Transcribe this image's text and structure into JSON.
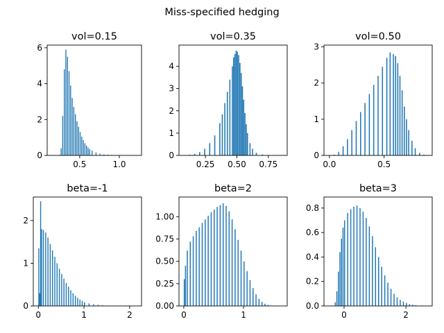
{
  "figure": {
    "suptitle": "Miss-specified hedging",
    "bar_color": "#1f77b4",
    "background": "#ffffff"
  },
  "chart_data": [
    {
      "type": "bar",
      "title": "vol=0.15",
      "xlim": [
        0.09,
        1.28
      ],
      "ylim": [
        0,
        6.15
      ],
      "xticks": [
        {
          "v": 0.5,
          "label": "0.5"
        },
        {
          "v": 1.0,
          "label": "1.0"
        }
      ],
      "yticks": [
        {
          "v": 0,
          "label": "0"
        },
        {
          "v": 2,
          "label": "2"
        },
        {
          "v": 4,
          "label": "4"
        },
        {
          "v": 6,
          "label": "6"
        }
      ],
      "bin_width": 0.0118,
      "bins": [
        [
          0.24,
          0.03
        ],
        [
          0.26,
          0.4
        ],
        [
          0.28,
          2.2
        ],
        [
          0.3,
          4.8
        ],
        [
          0.32,
          5.9
        ],
        [
          0.34,
          5.5
        ],
        [
          0.36,
          4.7
        ],
        [
          0.38,
          3.9
        ],
        [
          0.4,
          3.2
        ],
        [
          0.42,
          2.7
        ],
        [
          0.44,
          2.3
        ],
        [
          0.46,
          1.9
        ],
        [
          0.48,
          1.6
        ],
        [
          0.5,
          1.3
        ],
        [
          0.52,
          1.05
        ],
        [
          0.54,
          0.85
        ],
        [
          0.56,
          0.68
        ],
        [
          0.58,
          0.55
        ],
        [
          0.6,
          0.44
        ],
        [
          0.62,
          0.35
        ],
        [
          0.65,
          0.27
        ],
        [
          0.7,
          0.17
        ],
        [
          0.75,
          0.1
        ],
        [
          0.8,
          0.06
        ],
        [
          0.85,
          0.04
        ],
        [
          0.9,
          0.025
        ],
        [
          0.95,
          0.015
        ],
        [
          1.0,
          0.01
        ],
        [
          1.1,
          0.005
        ],
        [
          1.2,
          0.003
        ]
      ]
    },
    {
      "type": "bar",
      "title": "vol=0.35",
      "xlim": [
        0.04,
        0.9
      ],
      "ylim": [
        0,
        4.95
      ],
      "xticks": [
        {
          "v": 0.25,
          "label": "0.25"
        },
        {
          "v": 0.5,
          "label": "0.50"
        },
        {
          "v": 0.75,
          "label": "0.75"
        }
      ],
      "yticks": [
        {
          "v": 0,
          "label": "0"
        },
        {
          "v": 1,
          "label": "1"
        },
        {
          "v": 2,
          "label": "2"
        },
        {
          "v": 3,
          "label": "3"
        },
        {
          "v": 4,
          "label": "4"
        }
      ],
      "bin_width": 0.0086,
      "bins": [
        [
          0.08,
          0.01
        ],
        [
          0.12,
          0.03
        ],
        [
          0.16,
          0.07
        ],
        [
          0.2,
          0.15
        ],
        [
          0.24,
          0.3
        ],
        [
          0.28,
          0.55
        ],
        [
          0.32,
          0.9
        ],
        [
          0.36,
          1.45
        ],
        [
          0.38,
          1.85
        ],
        [
          0.4,
          2.35
        ],
        [
          0.42,
          2.85
        ],
        [
          0.44,
          3.4
        ],
        [
          0.46,
          4.0
        ],
        [
          0.47,
          4.4
        ],
        [
          0.48,
          4.55
        ],
        [
          0.49,
          4.7
        ],
        [
          0.5,
          4.65
        ],
        [
          0.51,
          4.5
        ],
        [
          0.52,
          4.15
        ],
        [
          0.53,
          3.7
        ],
        [
          0.54,
          3.1
        ],
        [
          0.55,
          2.5
        ],
        [
          0.56,
          1.9
        ],
        [
          0.57,
          1.4
        ],
        [
          0.58,
          1.0
        ],
        [
          0.6,
          0.55
        ],
        [
          0.62,
          0.3
        ],
        [
          0.65,
          0.12
        ],
        [
          0.7,
          0.04
        ],
        [
          0.75,
          0.015
        ],
        [
          0.8,
          0.005
        ]
      ]
    },
    {
      "type": "bar",
      "title": "vol=0.50",
      "xlim": [
        -0.05,
        0.94
      ],
      "ylim": [
        0,
        3.05
      ],
      "xticks": [
        {
          "v": 0.0,
          "label": "0.0"
        },
        {
          "v": 0.5,
          "label": "0.5"
        }
      ],
      "yticks": [
        {
          "v": 0,
          "label": "0"
        },
        {
          "v": 1,
          "label": "1"
        },
        {
          "v": 2,
          "label": "2"
        },
        {
          "v": 3,
          "label": "3"
        }
      ],
      "bin_width": 0.0098,
      "bins": [
        [
          0.04,
          0.02
        ],
        [
          0.08,
          0.1
        ],
        [
          0.12,
          0.25
        ],
        [
          0.16,
          0.45
        ],
        [
          0.2,
          0.7
        ],
        [
          0.24,
          0.95
        ],
        [
          0.28,
          1.2
        ],
        [
          0.32,
          1.45
        ],
        [
          0.36,
          1.7
        ],
        [
          0.4,
          1.95
        ],
        [
          0.44,
          2.2
        ],
        [
          0.48,
          2.45
        ],
        [
          0.52,
          2.7
        ],
        [
          0.55,
          2.85
        ],
        [
          0.58,
          2.8
        ],
        [
          0.6,
          2.75
        ],
        [
          0.62,
          2.55
        ],
        [
          0.64,
          2.2
        ],
        [
          0.66,
          1.8
        ],
        [
          0.68,
          1.35
        ],
        [
          0.7,
          1.0
        ],
        [
          0.72,
          0.7
        ],
        [
          0.75,
          0.4
        ],
        [
          0.78,
          0.2
        ],
        [
          0.82,
          0.07
        ],
        [
          0.86,
          0.02
        ]
      ]
    },
    {
      "type": "bar",
      "title": "beta=-1",
      "xlim": [
        -0.11,
        2.26
      ],
      "ylim": [
        0,
        2.55
      ],
      "xticks": [
        {
          "v": 0,
          "label": "0"
        },
        {
          "v": 1,
          "label": "1"
        },
        {
          "v": 2,
          "label": "2"
        }
      ],
      "yticks": [
        {
          "v": 0,
          "label": "0"
        },
        {
          "v": 1,
          "label": "1"
        },
        {
          "v": 2,
          "label": "2"
        }
      ],
      "bin_width": 0.0215,
      "bins": [
        [
          0.0,
          1.35
        ],
        [
          0.02,
          0.3
        ],
        [
          0.04,
          2.45
        ],
        [
          0.06,
          1.8
        ],
        [
          0.1,
          1.78
        ],
        [
          0.15,
          1.72
        ],
        [
          0.2,
          1.6
        ],
        [
          0.25,
          1.45
        ],
        [
          0.3,
          1.3
        ],
        [
          0.35,
          1.15
        ],
        [
          0.4,
          1.0
        ],
        [
          0.45,
          0.87
        ],
        [
          0.5,
          0.75
        ],
        [
          0.55,
          0.64
        ],
        [
          0.6,
          0.54
        ],
        [
          0.65,
          0.45
        ],
        [
          0.7,
          0.37
        ],
        [
          0.75,
          0.3
        ],
        [
          0.8,
          0.24
        ],
        [
          0.85,
          0.19
        ],
        [
          0.9,
          0.15
        ],
        [
          0.95,
          0.12
        ],
        [
          1.0,
          0.09
        ],
        [
          1.1,
          0.06
        ],
        [
          1.2,
          0.04
        ],
        [
          1.3,
          0.025
        ],
        [
          1.4,
          0.015
        ],
        [
          1.5,
          0.01
        ],
        [
          1.6,
          0.006
        ],
        [
          1.8,
          0.003
        ]
      ]
    },
    {
      "type": "bar",
      "title": "beta=2",
      "xlim": [
        -0.08,
        1.73
      ],
      "ylim": [
        0,
        1.22
      ],
      "xticks": [
        {
          "v": 0,
          "label": "0"
        },
        {
          "v": 1,
          "label": "1"
        }
      ],
      "yticks": [
        {
          "v": 0,
          "label": "0.00"
        },
        {
          "v": 0.25,
          "label": "0.25"
        },
        {
          "v": 0.5,
          "label": "0.50"
        },
        {
          "v": 0.75,
          "label": "0.75"
        },
        {
          "v": 1.0,
          "label": "1.00"
        }
      ],
      "bin_width": 0.0172,
      "bins": [
        [
          0.0,
          0.3
        ],
        [
          0.02,
          0.45
        ],
        [
          0.05,
          0.62
        ],
        [
          0.1,
          0.72
        ],
        [
          0.15,
          0.78
        ],
        [
          0.2,
          0.84
        ],
        [
          0.25,
          0.88
        ],
        [
          0.3,
          0.93
        ],
        [
          0.35,
          0.97
        ],
        [
          0.4,
          1.01
        ],
        [
          0.45,
          1.05
        ],
        [
          0.5,
          1.08
        ],
        [
          0.55,
          1.11
        ],
        [
          0.6,
          1.13
        ],
        [
          0.65,
          1.15
        ],
        [
          0.7,
          1.12
        ],
        [
          0.75,
          1.06
        ],
        [
          0.8,
          0.97
        ],
        [
          0.85,
          0.86
        ],
        [
          0.9,
          0.74
        ],
        [
          0.95,
          0.62
        ],
        [
          1.0,
          0.5
        ],
        [
          1.05,
          0.39
        ],
        [
          1.1,
          0.29
        ],
        [
          1.15,
          0.2
        ],
        [
          1.2,
          0.13
        ],
        [
          1.25,
          0.08
        ],
        [
          1.3,
          0.045
        ],
        [
          1.35,
          0.025
        ],
        [
          1.4,
          0.012
        ],
        [
          1.45,
          0.005
        ]
      ]
    },
    {
      "type": "bar",
      "title": "beta=3",
      "xlim": [
        -0.65,
        2.85
      ],
      "ylim": [
        0,
        0.89
      ],
      "xticks": [
        {
          "v": 0,
          "label": "0"
        },
        {
          "v": 2,
          "label": "2"
        }
      ],
      "yticks": [
        {
          "v": 0,
          "label": "0.0"
        },
        {
          "v": 0.2,
          "label": "0.2"
        },
        {
          "v": 0.4,
          "label": "0.4"
        },
        {
          "v": 0.6,
          "label": "0.6"
        },
        {
          "v": 0.8,
          "label": "0.8"
        }
      ],
      "bin_width": 0.033,
      "bins": [
        [
          -0.3,
          0.03
        ],
        [
          -0.25,
          0.12
        ],
        [
          -0.2,
          0.28
        ],
        [
          -0.15,
          0.44
        ],
        [
          -0.1,
          0.55
        ],
        [
          -0.05,
          0.64
        ],
        [
          0.0,
          0.7
        ],
        [
          0.1,
          0.76
        ],
        [
          0.2,
          0.79
        ],
        [
          0.3,
          0.81
        ],
        [
          0.4,
          0.82
        ],
        [
          0.5,
          0.8
        ],
        [
          0.6,
          0.77
        ],
        [
          0.7,
          0.72
        ],
        [
          0.8,
          0.65
        ],
        [
          0.9,
          0.57
        ],
        [
          1.0,
          0.48
        ],
        [
          1.1,
          0.4
        ],
        [
          1.2,
          0.32
        ],
        [
          1.3,
          0.25
        ],
        [
          1.4,
          0.19
        ],
        [
          1.5,
          0.14
        ],
        [
          1.6,
          0.1
        ],
        [
          1.7,
          0.07
        ],
        [
          1.8,
          0.05
        ],
        [
          1.9,
          0.035
        ],
        [
          2.0,
          0.025
        ],
        [
          2.1,
          0.015
        ],
        [
          2.2,
          0.01
        ],
        [
          2.3,
          0.006
        ],
        [
          2.5,
          0.003
        ]
      ]
    }
  ]
}
